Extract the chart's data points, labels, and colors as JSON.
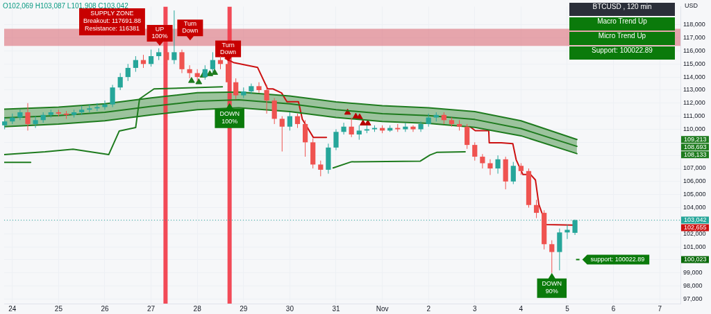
{
  "chart_data": {
    "type": "candlestick",
    "x": [
      "--10-23T20:00",
      "--10-24T00:00",
      "--10-24T04:00",
      "--10-24T08:00",
      "--10-24T12:00",
      "--10-24T16:00",
      "--10-24T20:00",
      "--10-25T00:00",
      "--10-25T04:00",
      "--10-25T08:00",
      "--10-25T12:00",
      "--10-25T16:00",
      "--10-25T20:00",
      "--10-26T00:00",
      "--10-26T04:00",
      "--10-26T08:00",
      "--10-26T12:00",
      "--10-26T16:00",
      "--10-26T20:00",
      "--10-27T00:00",
      "--10-27T04:00",
      "--10-27T08:00",
      "--10-27T12:00",
      "--10-27T16:00",
      "--10-27T20:00",
      "--10-28T00:00",
      "--10-28T04:00",
      "--10-28T08:00",
      "--10-28T12:00",
      "--10-28T16:00",
      "--10-28T20:00",
      "--10-29T00:00",
      "--10-29T04:00",
      "--10-29T08:00",
      "--10-29T12:00",
      "--10-29T16:00",
      "--10-29T20:00",
      "--10-30T00:00",
      "--10-30T04:00",
      "--10-30T08:00",
      "--10-30T12:00",
      "--10-30T16:00",
      "--10-30T20:00",
      "--10-31T00:00",
      "--10-31T04:00",
      "--10-31T08:00",
      "--10-31T12:00",
      "--10-31T16:00",
      "--10-31T20:00",
      "--11-01T00:00",
      "--11-01T04:00",
      "--11-01T08:00",
      "--11-01T12:00",
      "--11-01T16:00",
      "--11-01T20:00",
      "--11-02T00:00",
      "--11-02T04:00",
      "--11-02T08:00",
      "--11-02T12:00",
      "--11-02T16:00",
      "--11-02T20:00",
      "--11-03T00:00",
      "--11-03T04:00",
      "--11-03T08:00",
      "--11-03T12:00",
      "--11-03T16:00",
      "--11-03T20:00",
      "--11-04T00:00",
      "--11-04T04:00",
      "--11-04T08:00",
      "--11-04T12:00",
      "--11-04T16:00",
      "--11-04T20:00",
      "--11-05T00:00",
      "--11-05T04:00"
    ],
    "ohlc": [
      [
        110300,
        110900,
        110000,
        110600
      ],
      [
        110600,
        111200,
        110400,
        110900
      ],
      [
        110900,
        111500,
        110700,
        111300
      ],
      [
        111300,
        112000,
        109900,
        110400
      ],
      [
        110400,
        111000,
        110100,
        110700
      ],
      [
        110700,
        111300,
        110500,
        111100
      ],
      [
        111100,
        111500,
        110900,
        111300
      ],
      [
        111300,
        111500,
        111000,
        111200
      ],
      [
        111200,
        111400,
        110800,
        111100
      ],
      [
        111100,
        111500,
        110900,
        111300
      ],
      [
        111300,
        111800,
        111100,
        111500
      ],
      [
        111500,
        111900,
        111300,
        111600
      ],
      [
        111600,
        112000,
        111400,
        111700
      ],
      [
        111700,
        112200,
        111500,
        111900
      ],
      [
        111900,
        113400,
        111700,
        113200
      ],
      [
        113200,
        114300,
        113000,
        114000
      ],
      [
        114000,
        115000,
        113700,
        114700
      ],
      [
        114700,
        115600,
        114400,
        115300
      ],
      [
        115300,
        115700,
        114700,
        115000
      ],
      [
        115000,
        116100,
        114800,
        115600
      ],
      [
        115600,
        116200,
        115300,
        115900
      ],
      [
        115900,
        116100,
        114900,
        115300
      ],
      [
        115300,
        119100,
        115000,
        115900
      ],
      [
        115900,
        116100,
        114300,
        114600
      ],
      [
        114600,
        114900,
        113900,
        114300
      ],
      [
        114300,
        114600,
        113700,
        114000
      ],
      [
        114000,
        114900,
        113800,
        114600
      ],
      [
        114600,
        115900,
        114400,
        115300
      ],
      [
        115300,
        115600,
        114600,
        115000
      ],
      [
        115000,
        115200,
        113300,
        113600
      ],
      [
        113600,
        113900,
        112300,
        112600
      ],
      [
        112600,
        113200,
        112400,
        112900
      ],
      [
        112900,
        113500,
        112700,
        113300
      ],
      [
        113300,
        113600,
        112800,
        113000
      ],
      [
        113000,
        113400,
        111200,
        112200
      ],
      [
        112200,
        112400,
        110400,
        110800
      ],
      [
        110800,
        111000,
        108300,
        110200
      ],
      [
        110200,
        111300,
        109900,
        111000
      ],
      [
        111000,
        111200,
        110100,
        110400
      ],
      [
        110400,
        110700,
        107900,
        109000
      ],
      [
        109000,
        109300,
        107000,
        107300
      ],
      [
        107300,
        107600,
        106400,
        106900
      ],
      [
        106900,
        108900,
        106600,
        108600
      ],
      [
        108600,
        110000,
        108400,
        109800
      ],
      [
        109800,
        110500,
        109600,
        110200
      ],
      [
        110200,
        110900,
        109400,
        109600
      ],
      [
        109600,
        110300,
        109200,
        109900
      ],
      [
        109900,
        110300,
        109700,
        110000
      ],
      [
        110000,
        110300,
        109800,
        110100
      ],
      [
        110100,
        110300,
        109700,
        109900
      ],
      [
        109900,
        110300,
        109800,
        110100
      ],
      [
        110100,
        110400,
        109800,
        110000
      ],
      [
        110000,
        110500,
        109800,
        110200
      ],
      [
        110200,
        110300,
        109800,
        110000
      ],
      [
        110000,
        110600,
        109800,
        110400
      ],
      [
        110400,
        111200,
        110200,
        110900
      ],
      [
        110900,
        111300,
        110600,
        111100
      ],
      [
        111100,
        111300,
        110400,
        110700
      ],
      [
        110700,
        110900,
        110200,
        110400
      ],
      [
        110400,
        110700,
        109900,
        110200
      ],
      [
        110200,
        110400,
        108500,
        108800
      ],
      [
        108800,
        109000,
        107600,
        107900
      ],
      [
        107900,
        108100,
        107000,
        107400
      ],
      [
        107400,
        107700,
        106500,
        107000
      ],
      [
        107000,
        108000,
        106600,
        107700
      ],
      [
        107700,
        107900,
        105400,
        106000
      ],
      [
        106000,
        107500,
        105800,
        107200
      ],
      [
        107200,
        107400,
        106500,
        106800
      ],
      [
        106800,
        107000,
        104000,
        104200
      ],
      [
        104200,
        104600,
        103200,
        103600
      ],
      [
        103600,
        103800,
        100800,
        101200
      ],
      [
        101200,
        101500,
        99000,
        100600
      ],
      [
        100600,
        102400,
        99200,
        102100
      ],
      [
        102100,
        102700,
        101600,
        102300
      ],
      [
        102069,
        103087,
        101908,
        103042
      ]
    ],
    "colors": [
      "#26a69a",
      "#26a69a",
      "#26a69a",
      "#ef5350",
      "#26a69a",
      "#26a69a",
      "#26a69a",
      "#ef5350",
      "#ef5350",
      "#26a69a",
      "#26a69a",
      "#26a69a",
      "#26a69a",
      "#26a69a",
      "#26a69a",
      "#26a69a",
      "#26a69a",
      "#26a69a",
      "#ef5350",
      "#26a69a",
      "#26a69a",
      "#ef5350",
      "#26a69a",
      "#ef5350",
      "#ef5350",
      "#ef5350",
      "#26a69a",
      "#26a69a",
      "#ef5350",
      "#ef5350",
      "#ef5350",
      "#26a69a",
      "#26a69a",
      "#ef5350",
      "#ef5350",
      "#ef5350",
      "#ef5350",
      "#26a69a",
      "#ef5350",
      "#ef5350",
      "#ef5350",
      "#ef5350",
      "#26a69a",
      "#26a69a",
      "#26a69a",
      "#ef5350",
      "#26a69a",
      "#26a69a",
      "#26a69a",
      "#ef5350",
      "#26a69a",
      "#ef5350",
      "#26a69a",
      "#ef5350",
      "#26a69a",
      "#26a69a",
      "#26a69a",
      "#ef5350",
      "#ef5350",
      "#ef5350",
      "#ef5350",
      "#ef5350",
      "#ef5350",
      "#ef5350",
      "#26a69a",
      "#ef5350",
      "#26a69a",
      "#ef5350",
      "#ef5350",
      "#ef5350",
      "#ef5350",
      "#ef5350",
      "#26a69a",
      "#26a69a",
      "#26a69a"
    ],
    "series": [
      {
        "type": "line",
        "color": "#1e7b1e",
        "x": [
          "--10-23T19:45",
          "--10-25T00:00",
          "--10-26T00:00",
          "--10-27T00:00",
          "--10-28T00:00",
          "--10-28T21:30",
          "--10-30T00:00",
          "--10-31T00:00",
          "--11-01T00:00",
          "--11-02T00:00",
          "--11-03T00:00",
          "--11-04T00:00",
          "--11-05T05:00"
        ],
        "values": [
          110870,
          111050,
          111300,
          111750,
          112150,
          112250,
          111950,
          111500,
          111200,
          111050,
          110750,
          110050,
          108693
        ],
        "lower": [
          110200,
          110400,
          110650,
          111100,
          111500,
          111650,
          111350,
          110900,
          110600,
          110450,
          110150,
          109500,
          108133
        ],
        "upper": [
          111540,
          111700,
          111950,
          112400,
          112800,
          112850,
          112550,
          112100,
          111800,
          111650,
          111350,
          110650,
          109213
        ]
      },
      {
        "type": "line",
        "color": "#1e7b1e",
        "x": [
          "--10-23T19:45",
          "--10-25T00:00",
          "--10-26T00:00",
          "--10-27T00:00",
          "--10-28T00:00",
          "--10-28T21:30",
          "--10-30T00:00",
          "--10-31T00:00",
          "--11-01T00:00",
          "--11-02T00:00",
          "--11-03T00:00",
          "--11-04T00:00",
          "--11-05T05:00"
        ],
        "values": [
          111540,
          111700,
          111950,
          112400,
          112800,
          112850,
          112550,
          112100,
          111800,
          111650,
          111350,
          110650,
          109213
        ]
      },
      {
        "type": "line",
        "color": "#1e7b1e",
        "x": [
          "--10-23T19:45",
          "--10-25T00:00",
          "--10-26T00:00",
          "--10-27T00:00",
          "--10-28T00:00",
          "--10-28T21:30",
          "--10-30T00:00",
          "--10-31T00:00",
          "--11-01T00:00",
          "--11-02T00:00",
          "--11-03T00:00",
          "--11-04T00:00",
          "--11-05T05:00"
        ],
        "values": [
          110200,
          110400,
          110650,
          111100,
          111500,
          111650,
          111350,
          110900,
          110600,
          110450,
          110150,
          109500,
          108133
        ]
      },
      {
        "type": "line",
        "color": "#1e7b1e",
        "x": [
          "--10-23T19:45",
          "--10-24T09:30"
        ],
        "values": [
          107460,
          107460
        ]
      },
      {
        "type": "line",
        "color": "#1e7b1e",
        "x": [
          "--10-23T19:45",
          "--10-24T17:00",
          "--10-25T07:30",
          "--10-26T02:00",
          "--10-26T07:30",
          "--10-26T16:00",
          "--10-26T18:00",
          "--10-27T01:30",
          "--10-28T13:00"
        ],
        "values": [
          108060,
          108270,
          108470,
          108060,
          109870,
          110130,
          112320,
          113090,
          113250
        ]
      },
      {
        "type": "line",
        "color": "#1e7b1e",
        "x": [
          "--10-30T22:30",
          "--10-31T08:00",
          "--11-01T19:45",
          "--11-02T00:45",
          "--11-02T04:15",
          "--11-02T19:00"
        ],
        "values": [
          107040,
          107510,
          107560,
          108030,
          108230,
          108280
        ]
      },
      {
        "type": "line",
        "color": "#cc1111",
        "x": [
          "--10-28T14:30",
          "--10-28T18:45",
          "--10-29T07:15",
          "--10-29T12:30",
          "--10-29T15:15",
          "--10-29T19:45",
          "--10-29T22:30",
          "--10-30T04:30",
          "--10-30T06:30",
          "--10-30T12:15",
          "--10-30T19:00"
        ],
        "values": [
          115420,
          115110,
          114740,
          113090,
          113090,
          112780,
          112110,
          112110,
          110770,
          109370,
          109370
        ]
      },
      {
        "type": "line",
        "color": "#cc1111",
        "x": [
          "--11-02T21:30",
          "--11-03T00:15",
          "--11-03T07:15",
          "--11-03T07:30",
          "--11-03T13:45",
          "--11-03T19:45",
          "--11-03T21:30",
          "--11-04T01:00",
          "--11-04T05:00",
          "--11-04T07:30",
          "--11-04T09:15",
          "--11-04T13:00",
          "--11-05T03:00"
        ],
        "values": [
          110200,
          109890,
          109890,
          108960,
          108960,
          108900,
          107660,
          106530,
          106530,
          106110,
          104250,
          102700,
          102655
        ]
      },
      {
        "type": "scatter",
        "marker": "triangle",
        "color": "#1e7b1e",
        "x": [
          "--10-27T21:00",
          "--10-28T00:45",
          "--10-28T03:00",
          "--10-28T06:30",
          "--10-28T09:00"
        ],
        "values": [
          113710,
          113610,
          114120,
          114230,
          114330
        ]
      },
      {
        "type": "scatter",
        "marker": "triangle",
        "color": "#b80000",
        "x": [
          "--10-31T06:00",
          "--10-31T10:15",
          "--10-31T12:15",
          "--10-31T14:00",
          "--10-31T16:30"
        ],
        "values": [
          111280,
          110970,
          110920,
          110450,
          110450
        ]
      }
    ],
    "xlim": [
      "--10-23T19:45",
      "--11-07T10:45"
    ],
    "xticks": [
      {
        "value": "--10-24",
        "label": "24"
      },
      {
        "value": "--10-25",
        "label": "25"
      },
      {
        "value": "--10-26",
        "label": "26"
      },
      {
        "value": "--10-27",
        "label": "27"
      },
      {
        "value": "--10-28",
        "label": "28"
      },
      {
        "value": "--10-29",
        "label": "29"
      },
      {
        "value": "--10-30",
        "label": "30"
      },
      {
        "value": "--10-31",
        "label": "31"
      },
      {
        "value": "--11-01",
        "label": "Nov"
      },
      {
        "value": "--11-02",
        "label": "2"
      },
      {
        "value": "--11-03",
        "label": "3"
      },
      {
        "value": "--11-04",
        "label": "4"
      },
      {
        "value": "--11-05",
        "label": "5"
      },
      {
        "value": "--11-06",
        "label": "6"
      },
      {
        "value": "--11-07",
        "label": "7"
      }
    ],
    "ylim": [
      96650,
      119400
    ],
    "yticks": [
      {
        "value": 97000,
        "label": "97,000"
      },
      {
        "value": 98000,
        "label": "98,000"
      },
      {
        "value": 99000,
        "label": "99,000"
      },
      {
        "value": 100000,
        "label": null
      },
      {
        "value": 101000,
        "label": "101,000"
      },
      {
        "value": 102000,
        "label": "102,000"
      },
      {
        "value": 103000,
        "label": null
      },
      {
        "value": 104000,
        "label": "104,000"
      },
      {
        "value": 105000,
        "label": "105,000"
      },
      {
        "value": 106000,
        "label": "106,000"
      },
      {
        "value": 107000,
        "label": "107,000"
      },
      {
        "value": 108000,
        "label": null
      },
      {
        "value": 109000,
        "label": null
      },
      {
        "value": 110000,
        "label": "110,000"
      },
      {
        "value": 111000,
        "label": "111,000"
      },
      {
        "value": 112000,
        "label": "112,000"
      },
      {
        "value": 113000,
        "label": "113,000"
      },
      {
        "value": 114000,
        "label": "114,000"
      },
      {
        "value": 115000,
        "label": "115,000"
      },
      {
        "value": 116000,
        "label": "116,000"
      },
      {
        "value": 117000,
        "label": "117,000"
      },
      {
        "value": 118000,
        "label": "118,000"
      }
    ],
    "grid": true,
    "ref_lines": [
      {
        "axis": "x",
        "value": "--10-27T07:30",
        "color": "#f23645"
      },
      {
        "axis": "x",
        "value": "--10-28T16:45",
        "color": "#f23645"
      },
      {
        "axis": "y",
        "value": 103042,
        "label": "103,042",
        "color": "#26a69a",
        "line_style": "dotted"
      }
    ],
    "bands": [
      {
        "axis": "y",
        "from": 116381,
        "to": 117691.88,
        "label": "SUPPLY ZONE\nBreakout: 117691.88\nResistance: 116381",
        "color": "#d9626e"
      }
    ],
    "annotations": [
      "O102,069 H103,087 L101,908 C103,042",
      "USD",
      "BTCUSD , 120 min",
      "Macro Trend Up",
      "Micro Trend Up",
      "Support: 100022.89",
      {
        "text": "UP\n100%",
        "x": "--10-27T04:30",
        "y": 116400
      },
      "Turn\nDown",
      {
        "text": "Turn\nDown",
        "x": "--10-28T16:00",
        "y": 115200
      },
      {
        "text": "DOWN\n100%",
        "x": "--10-28T16:45",
        "y": 112000
      },
      {
        "text": "DOWN\n90%",
        "x": "--11-04T16:00",
        "y": 99000
      },
      {
        "text": "support: 100022.89",
        "x": "--11-05T06:00",
        "y": 100022.89
      },
      "109,213",
      "108,693",
      "108,133",
      "102,655",
      "100,023"
    ]
  }
}
